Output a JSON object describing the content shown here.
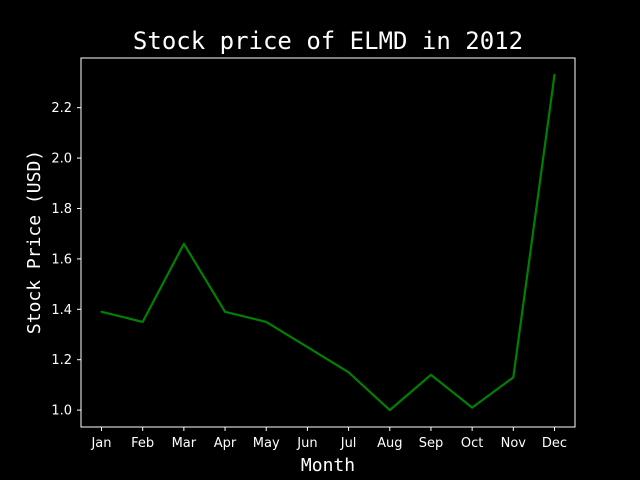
{
  "chart_data": {
    "type": "line",
    "title": "Stock price of ELMD in 2012",
    "xlabel": "Month",
    "ylabel": "Stock Price (USD)",
    "categories": [
      "Jan",
      "Feb",
      "Mar",
      "Apr",
      "May",
      "Jun",
      "Jul",
      "Aug",
      "Sep",
      "Oct",
      "Nov",
      "Dec"
    ],
    "series": [
      {
        "values": [
          1.39,
          1.35,
          1.66,
          1.39,
          1.35,
          1.25,
          1.15,
          1.0,
          1.14,
          1.01,
          1.13,
          2.33
        ],
        "color": "#008000"
      }
    ],
    "yticks": [
      "1.0",
      "1.2",
      "1.4",
      "1.6",
      "1.8",
      "2.0",
      "2.2"
    ],
    "ylim": [
      0.933,
      2.397
    ],
    "grid": false,
    "background": "#000000",
    "axes_color": "#ffffff"
  }
}
